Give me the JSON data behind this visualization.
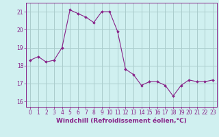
{
  "x": [
    0,
    1,
    2,
    3,
    4,
    5,
    6,
    7,
    8,
    9,
    10,
    11,
    12,
    13,
    14,
    15,
    16,
    17,
    18,
    19,
    20,
    21,
    22,
    23
  ],
  "y": [
    18.3,
    18.5,
    18.2,
    18.3,
    19.0,
    21.1,
    20.9,
    20.7,
    20.4,
    21.0,
    21.0,
    19.9,
    17.8,
    17.5,
    16.9,
    17.1,
    17.1,
    16.9,
    16.3,
    16.9,
    17.2,
    17.1,
    17.1,
    17.2
  ],
  "line_color": "#882288",
  "marker_color": "#882288",
  "bg_color": "#d0f0f0",
  "grid_color": "#aacccc",
  "xlabel": "Windchill (Refroidissement éolien,°C)",
  "xlabel_color": "#882288",
  "ylabel_ticks": [
    16,
    17,
    18,
    19,
    20,
    21
  ],
  "xtick_labels": [
    "0",
    "1",
    "2",
    "3",
    "4",
    "5",
    "6",
    "7",
    "8",
    "9",
    "10",
    "11",
    "12",
    "13",
    "14",
    "15",
    "16",
    "17",
    "18",
    "19",
    "20",
    "21",
    "22",
    "23"
  ],
  "ylim": [
    15.7,
    21.5
  ],
  "xlim": [
    -0.5,
    23.5
  ],
  "tick_color": "#882288",
  "spine_color": "#882288",
  "label_fontsize": 6.5,
  "tick_fontsize": 5.5
}
